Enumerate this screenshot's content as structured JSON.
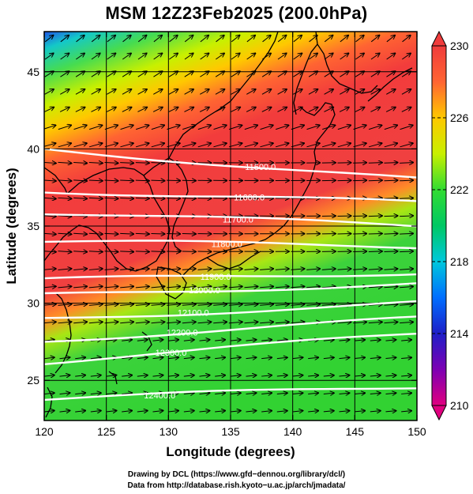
{
  "title": "MSM 12Z23Feb2025 (200.0hPa)",
  "x_axis": {
    "label": "Longitude (degrees)",
    "range": [
      120,
      150
    ],
    "ticks": [
      "120",
      "125",
      "130",
      "135",
      "140",
      "145",
      "150"
    ]
  },
  "y_axis": {
    "label": "Latitude  (degrees)",
    "range": [
      22.4,
      47.6
    ],
    "ticks": [
      "25",
      "30",
      "35",
      "40",
      "45"
    ]
  },
  "colorbar": {
    "range": [
      210,
      230
    ],
    "ticks": [
      "230",
      "226",
      "222",
      "218",
      "214",
      "210"
    ],
    "colors": [
      "#e1007f",
      "#7d00b3",
      "#1e1ec8",
      "#006eff",
      "#00c8dc",
      "#00c864",
      "#32dc32",
      "#c8f000",
      "#ffc800",
      "#ff6432",
      "#f03c3c"
    ]
  },
  "contours": [
    {
      "label": "11500.0",
      "lat_left": 40.0,
      "lat_right": 38.0
    },
    {
      "label": "11600.0",
      "lat_left": 37.3,
      "lat_right": 36.5
    },
    {
      "label": "11700.0",
      "lat_left": 35.9,
      "lat_right": 35.0
    },
    {
      "label": "11800.0",
      "lat_left": 34.0,
      "lat_right": 33.7
    },
    {
      "label": "11900.0",
      "lat_left": 31.5,
      "lat_right": 32.0
    },
    {
      "label": "12000.0",
      "lat_left": 30.5,
      "lat_right": 31.3
    },
    {
      "label": "12100.0",
      "lat_left": 29.0,
      "lat_right": 30.0
    },
    {
      "label": "12200.0",
      "lat_left": 27.6,
      "lat_right": 29.0
    },
    {
      "label": "12300.0",
      "lat_left": 26.2,
      "lat_right": 28.0
    },
    {
      "label": "12400.0",
      "lat_left": 23.8,
      "lat_right": 24.6
    }
  ],
  "credits": {
    "line1": "Drawing by DCL (https://www.gfd−dennou.org/library/dcl/)",
    "line2": "Data from http://database.rish.kyoto−u.ac.jp/arch/jmadata/"
  }
}
